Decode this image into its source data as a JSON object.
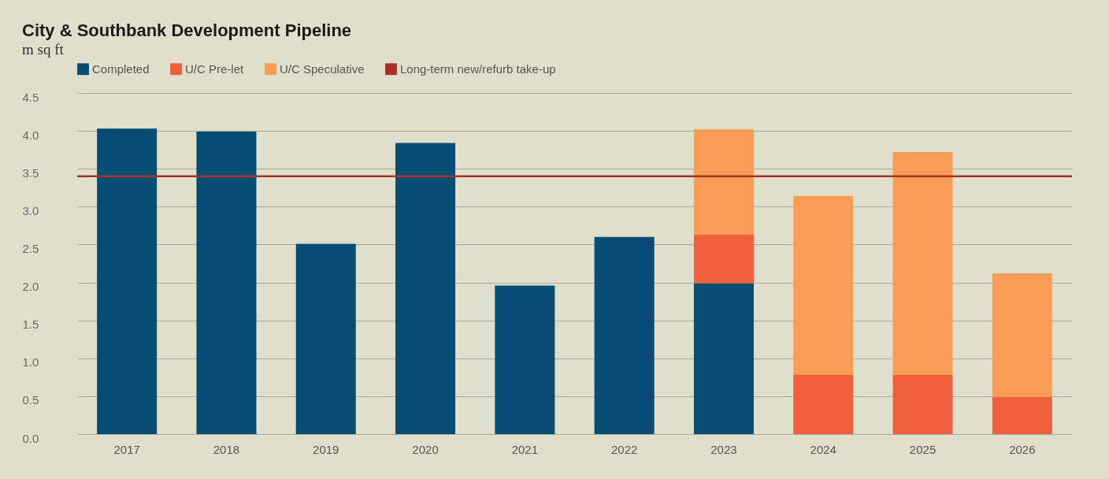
{
  "chart_data": {
    "type": "bar",
    "title": "City & Southbank Development Pipeline",
    "subtitle": "m sq ft",
    "categories": [
      "2017",
      "2018",
      "2019",
      "2020",
      "2021",
      "2022",
      "2023",
      "2024",
      "2025",
      "2026"
    ],
    "stacked": true,
    "series": [
      {
        "name": "Completed",
        "color": "#054d72",
        "values": [
          4.03,
          3.99,
          2.51,
          3.84,
          1.96,
          2.6,
          1.99,
          null,
          null,
          null
        ]
      },
      {
        "name": "U/C Pre-let",
        "color": "#f15f3c",
        "values": [
          null,
          null,
          null,
          null,
          null,
          null,
          0.64,
          0.78,
          0.78,
          0.49
        ]
      },
      {
        "name": "U/C Speculative",
        "color": "#f89c56",
        "values": [
          null,
          null,
          null,
          null,
          null,
          null,
          1.39,
          2.36,
          2.94,
          1.63
        ]
      }
    ],
    "ref_lines": [
      {
        "axis": "y",
        "value": 3.4,
        "label": "Long-term new/refurb take-up",
        "color": "#a83226"
      }
    ],
    "ylim": [
      0,
      4.5
    ],
    "yticks": [
      {
        "value": 0,
        "label": "0.0"
      },
      {
        "value": 0.5,
        "label": "0.5"
      },
      {
        "value": 1,
        "label": "1.0"
      },
      {
        "value": 1.5,
        "label": "1.5"
      },
      {
        "value": 2,
        "label": "2.0"
      },
      {
        "value": 2.5,
        "label": "2.5"
      },
      {
        "value": 3,
        "label": "3.0"
      },
      {
        "value": 3.5,
        "label": "3.5"
      },
      {
        "value": 4,
        "label": "4.0"
      },
      {
        "value": 4.5,
        "label": "4.5"
      }
    ],
    "grid": "y",
    "legend": "top left"
  }
}
